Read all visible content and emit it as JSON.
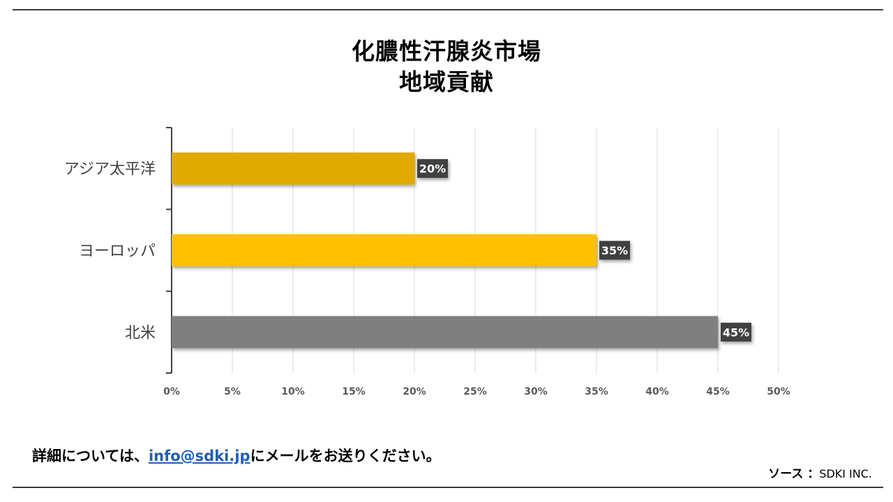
{
  "title": {
    "line1": "化膿性汗腺炎市場",
    "line2": "地域貢献"
  },
  "chart_data": {
    "type": "bar",
    "orientation": "horizontal",
    "categories": [
      "アジア太平洋",
      "ヨーロッパ",
      "北米"
    ],
    "values": [
      20,
      35,
      45
    ],
    "value_labels": [
      "20%",
      "35%",
      "45%"
    ],
    "bar_colors": [
      "#e2aa00",
      "#ffc000",
      "#7f7f7f"
    ],
    "xlim": [
      0,
      50
    ],
    "xticks": [
      0,
      5,
      10,
      15,
      20,
      25,
      30,
      35,
      40,
      45,
      50
    ],
    "xtick_labels": [
      "0%",
      "5%",
      "10%",
      "15%",
      "20%",
      "25%",
      "30%",
      "35%",
      "40%",
      "45%",
      "50%"
    ],
    "grid": true,
    "xlabel": "",
    "ylabel": ""
  },
  "footer": {
    "prefix": "詳細については、",
    "email": "info@sdki.jp",
    "suffix": "にメールをお送りください。"
  },
  "source": {
    "label": "ソース ：",
    "value": "SDKI INC."
  }
}
